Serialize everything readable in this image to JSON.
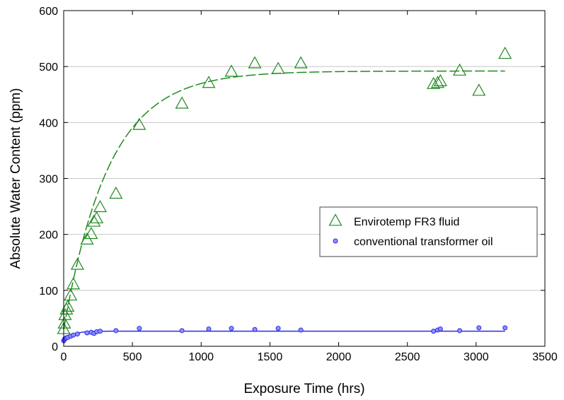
{
  "chart_data": {
    "type": "scatter",
    "title": "",
    "xlabel": "Exposure Time (hrs)",
    "ylabel": "Absolute Water Content (ppm)",
    "xlim": [
      0,
      3500
    ],
    "ylim": [
      0,
      600
    ],
    "xticks": [
      "0",
      "500",
      "1000",
      "1500",
      "2000",
      "2500",
      "3000",
      "3500"
    ],
    "yticks": [
      "0",
      "100",
      "200",
      "300",
      "400",
      "500",
      "600"
    ],
    "grid": "horizontal",
    "legend_position": "right",
    "series": [
      {
        "name": "Envirotemp FR3 fluid",
        "marker": "open-triangle",
        "color": "#1f8a1f",
        "fit_line": "dashed",
        "fit": {
          "y0": 30,
          "ymax": 492,
          "tau": 330
        },
        "x": [
          0,
          5,
          10,
          20,
          30,
          50,
          70,
          100,
          170,
          200,
          220,
          240,
          265,
          380,
          550,
          860,
          1055,
          1220,
          1390,
          1560,
          1725,
          2690,
          2720,
          2740,
          2880,
          3020,
          3210
        ],
        "y": [
          30,
          40,
          55,
          65,
          70,
          90,
          110,
          145,
          190,
          200,
          222,
          228,
          248,
          272,
          395,
          433,
          470,
          490,
          505,
          495,
          505,
          468,
          470,
          473,
          492,
          456,
          522
        ]
      },
      {
        "name": "conventional transformer oil",
        "marker": "filled-circle",
        "color": "#2a2aee",
        "fit_line": "solid",
        "fit": {
          "y0": 5,
          "ymax": 27,
          "tau": 55
        },
        "x": [
          0,
          5,
          10,
          20,
          30,
          50,
          70,
          100,
          170,
          200,
          220,
          240,
          265,
          380,
          550,
          860,
          1055,
          1220,
          1390,
          1560,
          1725,
          2690,
          2720,
          2740,
          2880,
          3020,
          3210
        ],
        "y": [
          10,
          12,
          14,
          15,
          16,
          18,
          20,
          22,
          24,
          25,
          23,
          26,
          27,
          28,
          32,
          28,
          31,
          32,
          30,
          32,
          29,
          27,
          29,
          31,
          28,
          33,
          33
        ]
      }
    ]
  }
}
